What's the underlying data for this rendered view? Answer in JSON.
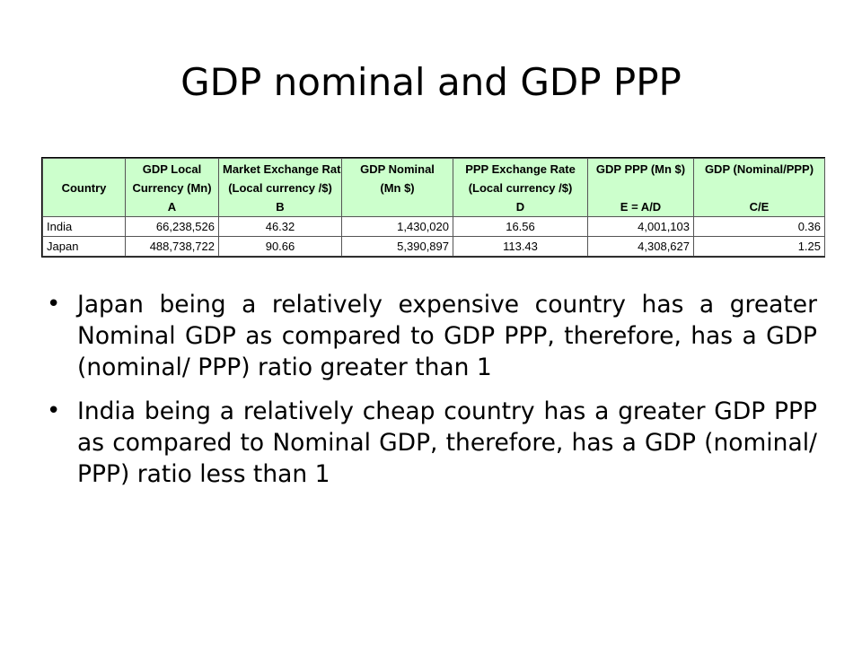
{
  "slide": {
    "title": "GDP nominal and GDP PPP"
  },
  "table": {
    "headers": [
      {
        "line1": "Country",
        "line2": "",
        "line3": ""
      },
      {
        "line1": "GDP Local",
        "line2": "Currency  (Mn)",
        "line3": "A"
      },
      {
        "line1": "Market Exchange Rate",
        "line2": "(Local currency /$)",
        "line3": "B"
      },
      {
        "line1": "GDP Nominal",
        "line2": "(Mn $)",
        "line3": ""
      },
      {
        "line1": "PPP Exchange Rate",
        "line2": "(Local currency /$)",
        "line3": "D"
      },
      {
        "line1": "GDP PPP (Mn $)",
        "line2": "",
        "line3": "E = A/D"
      },
      {
        "line1": "GDP (Nominal/PPP)",
        "line2": "",
        "line3": "C/E"
      }
    ],
    "rows": [
      [
        "India",
        "66,238,526",
        "46.32",
        "1,430,020",
        "16.56",
        "4,001,103",
        "0.36"
      ],
      [
        "Japan",
        "488,738,722",
        "90.66",
        "5,390,897",
        "113.43",
        "4,308,627",
        "1.25"
      ]
    ]
  },
  "bullets": [
    "Japan being a relatively expensive country has a greater  Nominal GDP as compared to GDP PPP, therefore, has a GDP (nominal/ PPP) ratio greater than 1",
    "India being a relatively cheap country has a greater GDP PPP as compared to Nominal GDP, therefore, has a GDP (nominal/ PPP) ratio less than 1"
  ],
  "colors": {
    "header_fill": "#ccffcc"
  }
}
